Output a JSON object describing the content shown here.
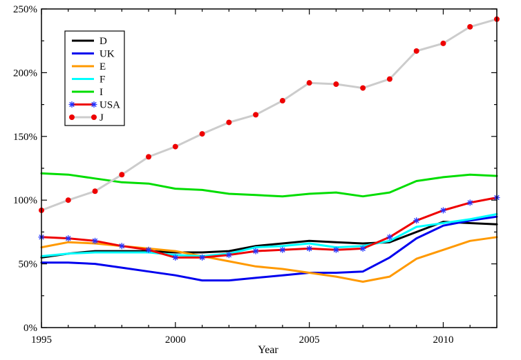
{
  "chart_data": {
    "type": "line",
    "title": "",
    "xlabel": "Year",
    "ylabel": "",
    "xlim": [
      1995,
      2012
    ],
    "ylim": [
      0,
      250
    ],
    "x_ticks": [
      1995,
      2000,
      2005,
      2010
    ],
    "x_tick_labels": [
      "1995",
      "2000",
      "2005",
      "2010"
    ],
    "y_ticks": [
      0,
      50,
      100,
      150,
      200,
      250
    ],
    "y_tick_labels": [
      "0%",
      "50%",
      "100%",
      "150%",
      "200%",
      "250%"
    ],
    "grid": false,
    "legend": {
      "position": "top-left"
    },
    "x": [
      1995,
      1996,
      1997,
      1998,
      1999,
      2000,
      2001,
      2002,
      2003,
      2004,
      2005,
      2006,
      2007,
      2008,
      2009,
      2010,
      2011,
      2012
    ],
    "series": [
      {
        "name": "D",
        "color": "#000000",
        "marker": "none",
        "values": [
          55,
          58,
          60,
          60,
          60,
          59,
          59,
          60,
          64,
          66,
          68,
          67,
          66,
          67,
          75,
          83,
          82,
          81
        ]
      },
      {
        "name": "UK",
        "color": "#0000ee",
        "marker": "none",
        "values": [
          51,
          51,
          50,
          47,
          44,
          41,
          37,
          37,
          39,
          41,
          43,
          43,
          44,
          55,
          70,
          80,
          84,
          87
        ]
      },
      {
        "name": "E",
        "color": "#ff9900",
        "marker": "none",
        "values": [
          63,
          67,
          66,
          64,
          62,
          60,
          56,
          52,
          48,
          46,
          43,
          40,
          36,
          40,
          54,
          61,
          68,
          71
        ]
      },
      {
        "name": "F",
        "color": "#00ffff",
        "marker": "none",
        "values": [
          56,
          58,
          59,
          59,
          59,
          57,
          56,
          58,
          63,
          64,
          66,
          63,
          64,
          68,
          79,
          82,
          85,
          89
        ]
      },
      {
        "name": "I",
        "color": "#00dd00",
        "marker": "none",
        "values": [
          121,
          120,
          117,
          114,
          113,
          109,
          108,
          105,
          104,
          103,
          105,
          106,
          103,
          106,
          115,
          118,
          120,
          119
        ]
      },
      {
        "name": "USA",
        "color": "#ee0000",
        "marker": "asterisk",
        "marker_color": "#2233ff",
        "values": [
          71,
          70,
          68,
          64,
          61,
          55,
          55,
          57,
          60,
          61,
          62,
          61,
          62,
          71,
          84,
          92,
          98,
          102
        ]
      },
      {
        "name": "J",
        "color": "#cccccc",
        "marker": "dot",
        "marker_color": "#ee0000",
        "values": [
          92,
          100,
          107,
          120,
          134,
          142,
          152,
          161,
          167,
          178,
          192,
          191,
          188,
          195,
          217,
          223,
          236,
          242
        ]
      }
    ]
  }
}
